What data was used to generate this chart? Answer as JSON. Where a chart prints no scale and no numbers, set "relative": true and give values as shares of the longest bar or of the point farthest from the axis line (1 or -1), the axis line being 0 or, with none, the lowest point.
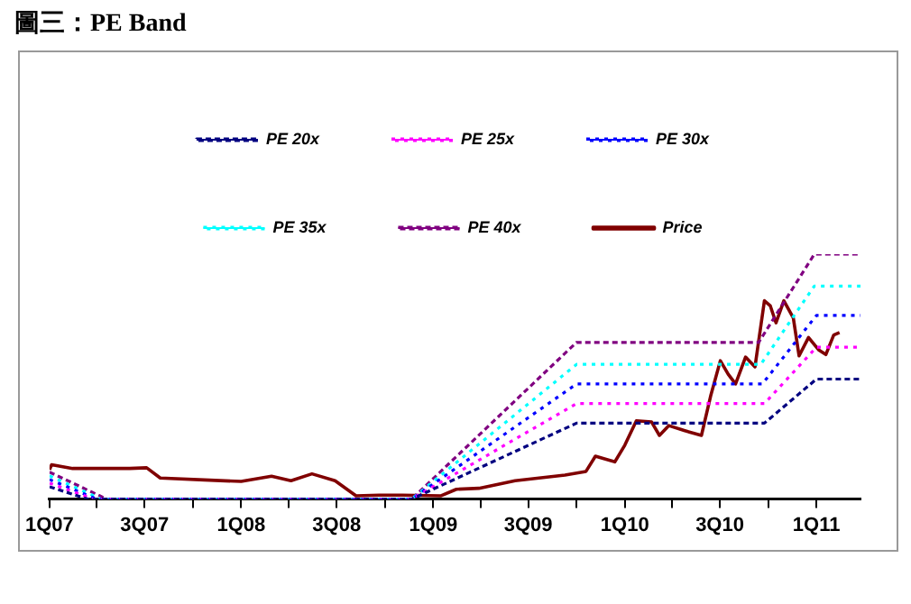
{
  "chart_data": {
    "type": "line",
    "title": "圖三：PE Band",
    "relative": true,
    "legend": "top",
    "grid": false,
    "xlim": [
      "2007-01-01",
      "2011-03-26"
    ],
    "xticks": [
      {
        "value": "2007-01-01",
        "label": "1Q07"
      },
      {
        "value": "2007-04-01",
        "label": null
      },
      {
        "value": "2007-07-01",
        "label": "3Q07"
      },
      {
        "value": "2007-10-01",
        "label": null
      },
      {
        "value": "2008-01-01",
        "label": "1Q08"
      },
      {
        "value": "2008-04-01",
        "label": null
      },
      {
        "value": "2008-07-01",
        "label": "3Q08"
      },
      {
        "value": "2008-10-01",
        "label": null
      },
      {
        "value": "2009-01-01",
        "label": "1Q09"
      },
      {
        "value": "2009-04-01",
        "label": null
      },
      {
        "value": "2009-07-01",
        "label": "3Q09"
      },
      {
        "value": "2009-10-01",
        "label": null
      },
      {
        "value": "2010-01-01",
        "label": "1Q10"
      },
      {
        "value": "2010-04-01",
        "label": null
      },
      {
        "value": "2010-07-01",
        "label": "3Q10"
      },
      {
        "value": "2010-10-01",
        "label": null
      },
      {
        "value": "2011-01-01",
        "label": "1Q11"
      }
    ],
    "series": [
      {
        "name": "PE 20x",
        "color": "#000080",
        "line_style": "dashed",
        "x": [
          "2007-01-01",
          "2007-03-15",
          "2008-11-21",
          "2009-10-01",
          "2010-09-24",
          "2011-01-01",
          "2011-03-26"
        ],
        "values": [
          0.05,
          0,
          0,
          0.31,
          0.31,
          0.49,
          0.49
        ]
      },
      {
        "name": "PE 25x",
        "color": "#ff00ff",
        "line_style": "dotted",
        "x": [
          "2007-01-01",
          "2007-03-26",
          "2008-11-21",
          "2009-10-01",
          "2010-09-24",
          "2011-01-01",
          "2011-03-26"
        ],
        "values": [
          0.065,
          0,
          0,
          0.39,
          0.39,
          0.62,
          0.62
        ]
      },
      {
        "name": "PE 30x",
        "color": "#0000ff",
        "line_style": "dotted",
        "x": [
          "2007-01-01",
          "2007-04-01",
          "2008-11-21",
          "2009-10-01",
          "2010-09-20",
          "2011-01-01",
          "2011-03-26"
        ],
        "values": [
          0.08,
          0,
          0,
          0.47,
          0.47,
          0.75,
          0.75
        ]
      },
      {
        "name": "PE 35x",
        "color": "#00ffff",
        "line_style": "dotted",
        "x": [
          "2007-01-01",
          "2007-04-09",
          "2008-11-21",
          "2009-10-01",
          "2010-09-17",
          "2010-12-28",
          "2011-03-26"
        ],
        "values": [
          0.095,
          0,
          0,
          0.55,
          0.55,
          0.87,
          0.87
        ]
      },
      {
        "name": "PE 40x",
        "color": "#800080",
        "line_style": "dashed",
        "x": [
          "2007-01-01",
          "2007-04-20",
          "2008-11-21",
          "2009-10-01",
          "2010-09-13",
          "2010-12-28",
          "2011-03-26"
        ],
        "values": [
          0.11,
          0,
          0,
          0.64,
          0.64,
          1,
          1
        ]
      },
      {
        "name": "Price",
        "color": "#800000",
        "line_style": "solid",
        "x": [
          "2007-01-01",
          "2007-01-05",
          "2007-02-14",
          "2007-06-03",
          "2007-07-05",
          "2007-07-31",
          "2007-10-23",
          "2008-01-01",
          "2008-02-28",
          "2008-04-05",
          "2008-05-15",
          "2008-06-28",
          "2008-08-07",
          "2008-09-20",
          "2008-11-03",
          "2009-01-15",
          "2009-02-14",
          "2009-03-29",
          "2009-06-06",
          "2009-09-09",
          "2009-10-19",
          "2009-11-06",
          "2009-12-13",
          "2010-01-01",
          "2010-01-23",
          "2010-02-21",
          "2010-03-08",
          "2010-03-26",
          "2010-04-24",
          "2010-05-27",
          "2010-06-14",
          "2010-07-02",
          "2010-07-17",
          "2010-07-31",
          "2010-08-19",
          "2010-09-06",
          "2010-09-24",
          "2010-10-05",
          "2010-10-16",
          "2010-10-31",
          "2010-11-18",
          "2010-11-29",
          "2010-12-17",
          "2011-01-05",
          "2011-01-19",
          "2011-02-03",
          "2011-02-14"
        ],
        "values": [
          0.12,
          0.14,
          0.125,
          0.125,
          0.128,
          0.086,
          0.078,
          0.072,
          0.093,
          0.075,
          0.103,
          0.075,
          0.013,
          0.016,
          0.016,
          0.013,
          0.04,
          0.044,
          0.075,
          0.098,
          0.113,
          0.175,
          0.152,
          0.22,
          0.32,
          0.315,
          0.26,
          0.3,
          0.28,
          0.26,
          0.425,
          0.565,
          0.51,
          0.47,
          0.58,
          0.54,
          0.81,
          0.79,
          0.72,
          0.81,
          0.74,
          0.585,
          0.66,
          0.61,
          0.59,
          0.67,
          0.68
        ]
      }
    ]
  }
}
